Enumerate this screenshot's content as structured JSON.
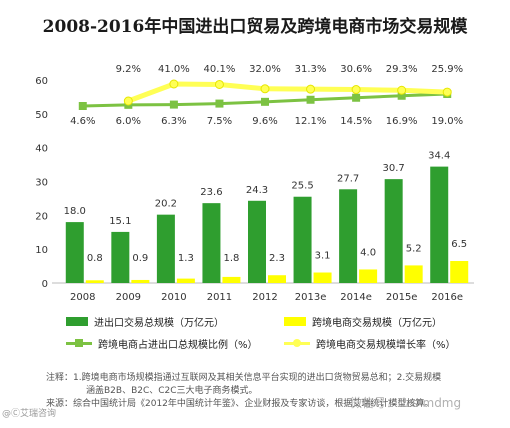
{
  "chart_data": {
    "type": "bar",
    "title": "2008-2016年中国进出口贸易及跨境电商市场交易规模",
    "categories": [
      "2008",
      "2009",
      "2010",
      "2011",
      "2012",
      "2013e",
      "2014e",
      "2015e",
      "2016e"
    ],
    "yticks": [
      "0",
      "10",
      "20",
      "30",
      "40",
      "50",
      "60"
    ],
    "ylim": [
      0,
      60
    ],
    "grid": false,
    "legend_position": "bottom",
    "series": [
      {
        "name": "进出口交易总规模（万亿元）",
        "kind": "bar",
        "color": "#2f9e2f",
        "values": [
          18.0,
          15.1,
          20.2,
          23.6,
          24.3,
          25.5,
          27.7,
          30.7,
          34.4
        ],
        "labels": [
          "18.0",
          "15.1",
          "20.2",
          "23.6",
          "24.3",
          "25.5",
          "27.7",
          "30.7",
          "34.4"
        ]
      },
      {
        "name": "跨境电商交易规模（万亿元）",
        "kind": "bar",
        "color": "#ffff00",
        "values": [
          0.8,
          0.9,
          1.3,
          1.8,
          2.3,
          3.1,
          4.0,
          5.2,
          6.5
        ],
        "labels": [
          "0.8",
          "0.9",
          "1.3",
          "1.8",
          "2.3",
          "3.1",
          "4.0",
          "5.2",
          "6.5"
        ]
      },
      {
        "name": "跨境电商占进出口总规模比例（%）",
        "kind": "line",
        "color": "#7cc242",
        "values": [
          4.6,
          6.0,
          6.3,
          7.5,
          9.6,
          12.1,
          14.5,
          16.9,
          19.0
        ],
        "labels": [
          "4.6%",
          "6.0%",
          "6.3%",
          "7.5%",
          "9.6%",
          "12.1%",
          "14.5%",
          "16.9%",
          "19.0%"
        ]
      },
      {
        "name": "跨境电商交易规模增长率（%）",
        "kind": "line",
        "color": "#ffff55",
        "values": [
          null,
          9.2,
          41.0,
          40.1,
          32.0,
          31.3,
          30.6,
          29.3,
          25.9
        ],
        "labels": [
          "",
          "9.2%",
          "41.0%",
          "40.1%",
          "32.0%",
          "31.3%",
          "30.6%",
          "29.3%",
          "25.9%"
        ]
      }
    ]
  },
  "notes": [
    "注释：1.跨境电商市场规模指通过互联网及其相关信息平台实现的进出口货物贸易总和；2.交易规模",
    "涵盖B2B、B2C、C2C三大电子商务模式。",
    "来源：综合中国统计局《2012年中国统计年鉴》、企业财报及专家访谈，根据艾瑞统计模型核算。"
  ],
  "watermark": "微信号：dzs-mdmg",
  "logo": "@Ⓒ艾瑞咨询"
}
